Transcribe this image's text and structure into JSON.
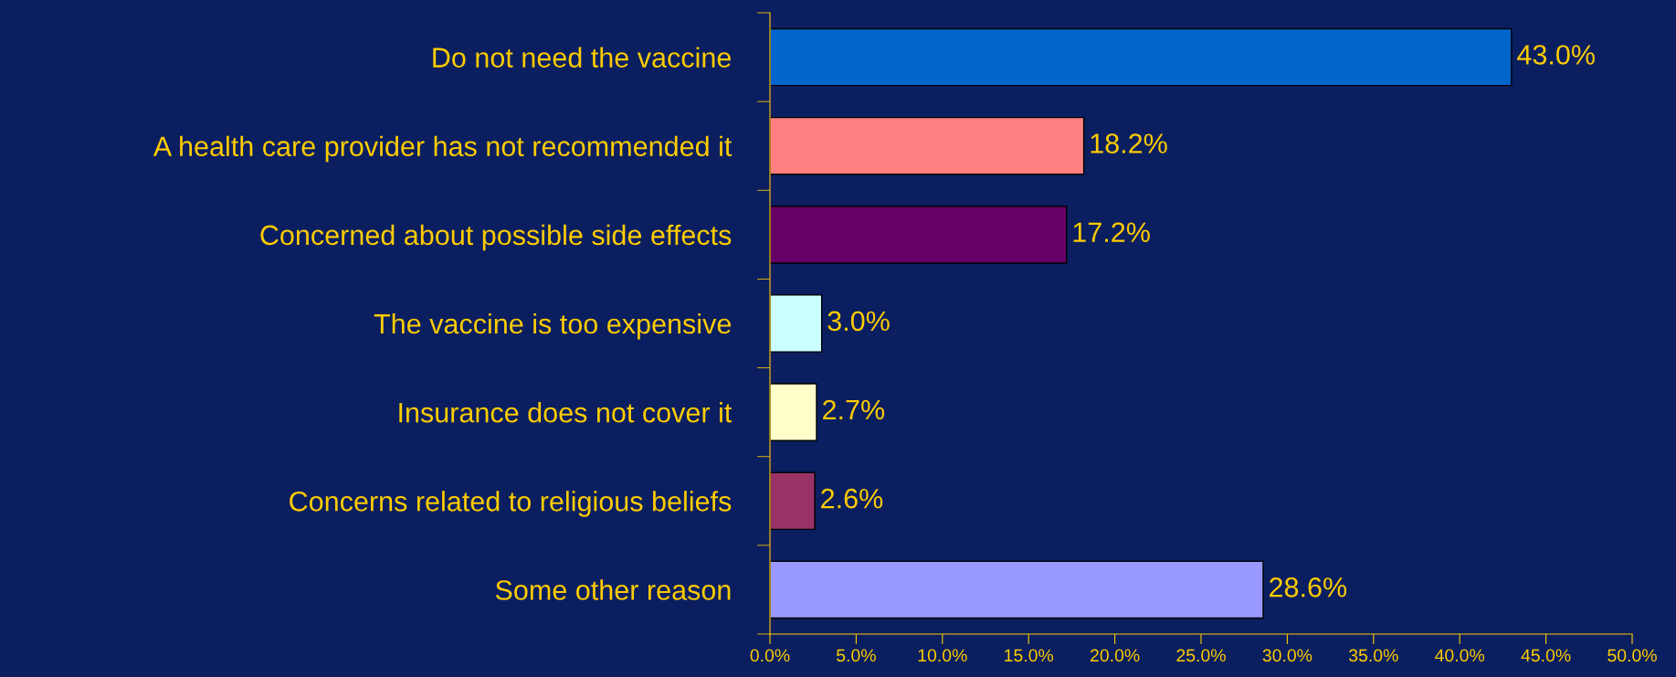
{
  "chart_data": {
    "type": "bar",
    "orientation": "horizontal",
    "categories": [
      "Do not need the vaccine",
      "A health care provider has not recommended it",
      "Concerned about possible side effects",
      "The vaccine is too expensive",
      "Insurance does not cover it",
      "Concerns related to religious beliefs",
      "Some other reason"
    ],
    "values": [
      43.0,
      18.2,
      17.2,
      3.0,
      2.7,
      2.6,
      28.6
    ],
    "colors": [
      "#0066cc",
      "#ff8080",
      "#660066",
      "#ccffff",
      "#ffffcc",
      "#993366",
      "#9999ff"
    ],
    "value_labels": [
      "43.0%",
      "18.2%",
      "17.2%",
      "3.0%",
      "2.7%",
      "2.6%",
      "28.6%"
    ],
    "xlim": [
      0,
      50
    ],
    "xticks": [
      {
        "value": 0,
        "label": "0.0%"
      },
      {
        "value": 5,
        "label": "5.0%"
      },
      {
        "value": 10,
        "label": "10.0%"
      },
      {
        "value": 15,
        "label": "15.0%"
      },
      {
        "value": 20,
        "label": "20.0%"
      },
      {
        "value": 25,
        "label": "25.0%"
      },
      {
        "value": 30,
        "label": "30.0%"
      },
      {
        "value": 35,
        "label": "35.0%"
      },
      {
        "value": 40,
        "label": "40.0%"
      },
      {
        "value": 45,
        "label": "45.0%"
      },
      {
        "value": 50,
        "label": "50.0%"
      }
    ],
    "grid": false,
    "legend": false
  }
}
